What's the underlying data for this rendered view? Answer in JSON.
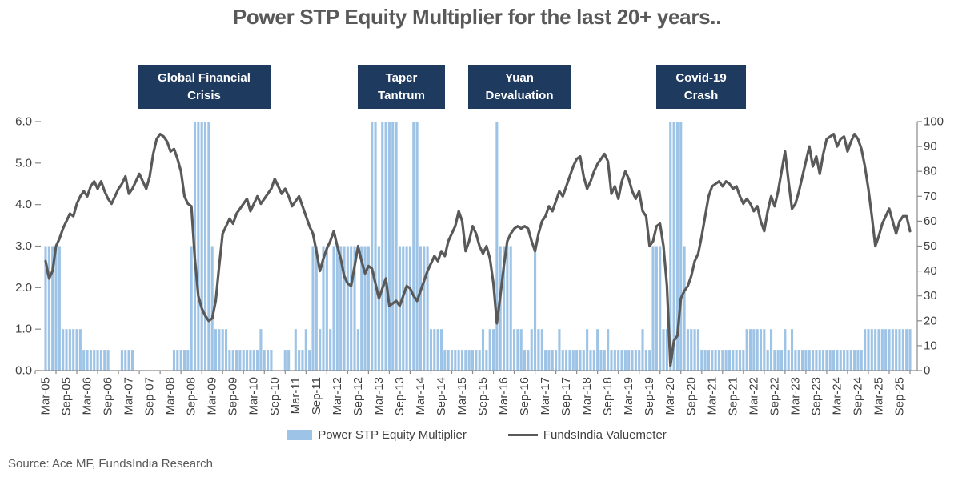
{
  "title": "Power STP Equity Multiplier for the last 20+ years..",
  "source": "Source: Ace MF, FundsIndia Research",
  "callouts": {
    "gfc": {
      "line1": "Global Financial",
      "line2": "Crisis"
    },
    "taper": {
      "line1": "Taper",
      "line2": "Tantrum"
    },
    "yuan": {
      "line1": "Yuan",
      "line2": "Devaluation"
    },
    "covid": {
      "line1": "Covid-19",
      "line2": "Crash"
    }
  },
  "legend": {
    "bar_label": "Power STP Equity Multiplier",
    "line_label": "FundsIndia Valuemeter"
  },
  "colors": {
    "bar": "#9DC3E6",
    "line": "#595959",
    "callout_bg": "#1F3A5F",
    "title_text": "#595959",
    "axis_text": "#404040",
    "axis_line": "#898989"
  },
  "chart_data": {
    "type": "combo bar+line",
    "frequency": "monthly",
    "start": "Mar-2005",
    "end": "Dec-2025",
    "grid": "off",
    "legend_position": "bottom",
    "x_labels": [
      "Mar-05",
      "Sep-05",
      "Mar-06",
      "Sep-06",
      "Mar-07",
      "Sep-07",
      "Mar-08",
      "Sep-08",
      "Mar-09",
      "Sep-09",
      "Mar-10",
      "Sep-10",
      "Mar-11",
      "Sep-11",
      "Mar-12",
      "Sep-12",
      "Mar-13",
      "Sep-13",
      "Mar-14",
      "Sep-14",
      "Mar-15",
      "Sep-15",
      "Mar-16",
      "Sep-16",
      "Mar-17",
      "Sep-17",
      "Mar-18",
      "Sep-18",
      "Mar-19",
      "Sep-19",
      "Mar-20",
      "Sep-20",
      "Mar-21",
      "Sep-21",
      "Mar-22",
      "Sep-22",
      "Mar-23",
      "Sep-23",
      "Mar-24",
      "Sep-24",
      "Mar-25",
      "Sep-25"
    ],
    "left_axis": {
      "min": 0,
      "max": 6,
      "tick_labels": [
        "0.0",
        "1.0",
        "2.0",
        "3.0",
        "4.0",
        "5.0",
        "6.0"
      ]
    },
    "right_axis": {
      "min": 0,
      "max": 100,
      "tick_labels": [
        "0",
        "10",
        "20",
        "30",
        "40",
        "50",
        "60",
        "70",
        "80",
        "90",
        "100"
      ]
    },
    "series": [
      {
        "name": "Power STP Equity Multiplier",
        "type": "bar",
        "axis": "left",
        "values": [
          3,
          3,
          3,
          3,
          3,
          1,
          1,
          1,
          1,
          1,
          1,
          0.5,
          0.5,
          0.5,
          0.5,
          0.5,
          0.5,
          0.5,
          0.5,
          0,
          0,
          0,
          0.5,
          0.5,
          0.5,
          0.5,
          0,
          0,
          0,
          0,
          0,
          0,
          0,
          0,
          0,
          0,
          0,
          0.5,
          0.5,
          0.5,
          0.5,
          0.5,
          3,
          6,
          6,
          6,
          6,
          6,
          3,
          1,
          1,
          1,
          1,
          0.5,
          0.5,
          0.5,
          0.5,
          0.5,
          0.5,
          0.5,
          0.5,
          0.5,
          1,
          0.5,
          0.5,
          0.5,
          0,
          0,
          0,
          0.5,
          0.5,
          0,
          1,
          0.5,
          0.5,
          1,
          0.5,
          3,
          3,
          1,
          3,
          3,
          1,
          3,
          3,
          3,
          3,
          3,
          3,
          3,
          1,
          3,
          3,
          3,
          6,
          6,
          3,
          6,
          6,
          6,
          6,
          6,
          3,
          3,
          3,
          3,
          6,
          6,
          3,
          3,
          3,
          1,
          1,
          1,
          1,
          0.5,
          0.5,
          0.5,
          0.5,
          0.5,
          0.5,
          0.5,
          0.5,
          0.5,
          0.5,
          0.5,
          1,
          0.5,
          1,
          1,
          6,
          3,
          3,
          3,
          3,
          1,
          1,
          1,
          0.5,
          0.5,
          1,
          3,
          1,
          1,
          0.5,
          0.5,
          0.5,
          0.5,
          1,
          0.5,
          0.5,
          0.5,
          0.5,
          0.5,
          0.5,
          0.5,
          1,
          0.5,
          0.5,
          1,
          0.5,
          0.5,
          1,
          0.5,
          0.5,
          0.5,
          0.5,
          0.5,
          0.5,
          0.5,
          0.5,
          0.5,
          1,
          0.5,
          0.5,
          3,
          3,
          3,
          1,
          1,
          6,
          6,
          6,
          6,
          3,
          1,
          1,
          1,
          1,
          0.5,
          0.5,
          0.5,
          0.5,
          0.5,
          0.5,
          0.5,
          0.5,
          0.5,
          0.5,
          0.5,
          0.5,
          0.5,
          1,
          1,
          1,
          1,
          1,
          1,
          0.5,
          1,
          0.5,
          0.5,
          0.5,
          1,
          0.5,
          1,
          0.5,
          0.5,
          0.5,
          0.5,
          0.5,
          0.5,
          0.5,
          0.5,
          0.5,
          0.5,
          0.5,
          0.5,
          0.5,
          0.5,
          0.5,
          0.5,
          0.5,
          0.5,
          0.5,
          0.5,
          1,
          1,
          1,
          1,
          1,
          1,
          1,
          1,
          1,
          1,
          1,
          1,
          1,
          1
        ]
      },
      {
        "name": "FundsIndia Valuemeter",
        "type": "line",
        "axis": "right",
        "values": [
          44,
          37,
          40,
          50,
          53,
          57,
          60,
          63,
          62,
          67,
          70,
          72,
          70,
          74,
          76,
          73,
          76,
          72,
          69,
          67,
          70,
          73,
          75,
          78,
          71,
          73,
          76,
          79,
          76,
          73,
          78,
          87,
          93,
          95,
          94,
          92,
          88,
          89,
          85,
          80,
          70,
          67,
          66,
          45,
          30,
          25,
          22,
          20,
          21,
          28,
          42,
          55,
          58,
          61,
          59,
          63,
          65,
          67,
          69,
          64,
          67,
          70,
          67,
          69,
          71,
          73,
          77,
          74,
          71,
          73,
          70,
          66,
          68,
          70,
          66,
          62,
          58,
          55,
          48,
          40,
          45,
          49,
          52,
          56,
          50,
          45,
          38,
          35,
          34,
          42,
          50,
          44,
          39,
          42,
          41,
          35,
          29,
          33,
          37,
          26,
          27,
          28,
          26,
          30,
          34,
          33,
          30,
          28,
          32,
          36,
          40,
          43,
          46,
          44,
          48,
          46,
          52,
          55,
          58,
          64,
          60,
          48,
          52,
          58,
          55,
          50,
          47,
          50,
          45,
          35,
          19,
          30,
          42,
          52,
          55,
          57,
          58,
          57,
          58,
          57,
          52,
          48,
          55,
          60,
          62,
          66,
          64,
          68,
          72,
          70,
          74,
          78,
          82,
          85,
          86,
          78,
          73,
          76,
          80,
          83,
          85,
          87,
          84,
          71,
          74,
          69,
          76,
          80,
          77,
          72,
          69,
          72,
          64,
          62,
          50,
          52,
          58,
          59,
          50,
          34,
          2,
          12,
          14,
          29,
          32,
          34,
          38,
          44,
          47,
          54,
          62,
          70,
          74,
          75,
          76,
          74,
          76,
          75,
          73,
          74,
          70,
          67,
          69,
          67,
          64,
          66,
          60,
          56,
          64,
          70,
          66,
          72,
          80,
          88,
          76,
          65,
          67,
          72,
          78,
          84,
          90,
          82,
          86,
          79,
          87,
          93,
          94,
          95,
          90,
          93,
          94,
          88,
          92,
          95,
          93,
          89,
          82,
          73,
          62,
          50,
          54,
          59,
          62,
          65,
          60,
          55,
          60,
          62,
          62,
          56
        ]
      }
    ]
  }
}
